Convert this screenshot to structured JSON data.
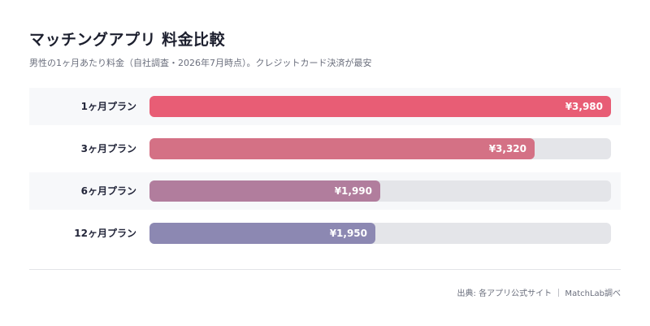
{
  "header": {
    "title": "マッチングアプリ 料金比較",
    "subtitle": "男性の1ヶ月あたり料金（自社調査・2026年7月時点）。クレジットカード決済が最安"
  },
  "footer": {
    "source": "出典: 各アプリ公式サイト ｜ MatchLab調べ"
  },
  "chart_data": {
    "type": "bar",
    "orientation": "horizontal",
    "categories": [
      "1ヶ月プラン",
      "3ヶ月プラン",
      "6ヶ月プラン",
      "12ヶ月プラン"
    ],
    "values": [
      3980,
      3320,
      1990,
      1950
    ],
    "value_labels": [
      "¥3,980",
      "¥3,320",
      "¥1,990",
      "¥1,950"
    ],
    "colors": [
      "#e85d75",
      "#d47185",
      "#b17d9d",
      "#8c88b2"
    ],
    "xlim": [
      0,
      3980
    ],
    "grid": false,
    "legend": "none"
  }
}
